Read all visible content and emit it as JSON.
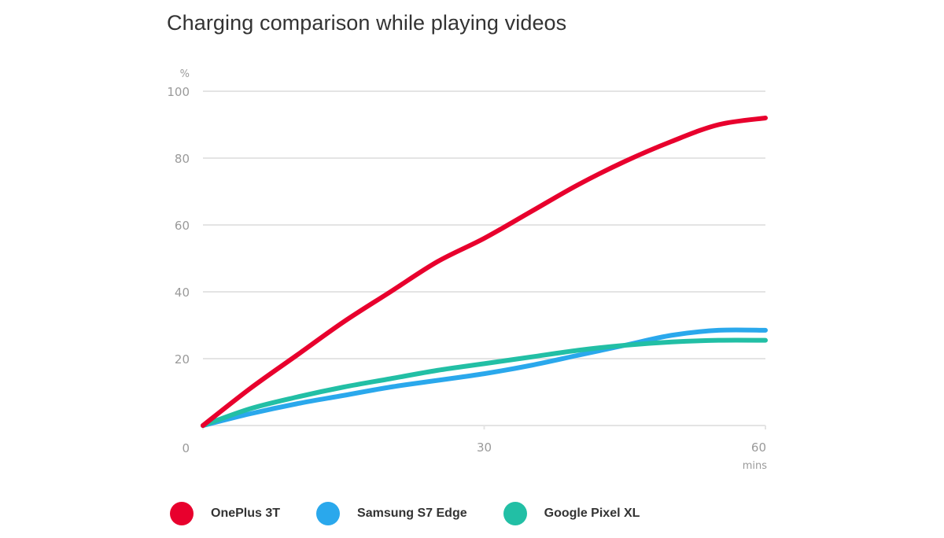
{
  "title": "Charging comparison while playing videos",
  "axes": {
    "y_unit": "%",
    "y_ticks": [
      "100",
      "80",
      "60",
      "40",
      "20",
      "0"
    ],
    "x_ticks": [
      "30",
      "60"
    ],
    "x_unit": "mins"
  },
  "legend": [
    {
      "label": "OnePlus 3T",
      "color": "#e8002d"
    },
    {
      "label": "Samsung S7 Edge",
      "color": "#2aa8ec"
    },
    {
      "label": "Google Pixel XL",
      "color": "#22bfa5"
    }
  ],
  "chart_data": {
    "type": "line",
    "title": "Charging comparison while playing videos",
    "xlabel": "mins",
    "ylabel": "%",
    "xlim": [
      0,
      60
    ],
    "ylim": [
      0,
      100
    ],
    "x_ticks": [
      0,
      30,
      60
    ],
    "y_ticks": [
      0,
      20,
      40,
      60,
      80,
      100
    ],
    "grid": "horizontal",
    "legend_position": "bottom",
    "x": [
      0,
      5,
      10,
      15,
      20,
      25,
      30,
      35,
      40,
      45,
      50,
      55,
      60
    ],
    "series": [
      {
        "name": "OnePlus 3T",
        "color": "#e8002d",
        "values": [
          0,
          11,
          21,
          31,
          40,
          49,
          56,
          64,
          72,
          79,
          85,
          90,
          92
        ]
      },
      {
        "name": "Samsung S7 Edge",
        "color": "#2aa8ec",
        "values": [
          0,
          3.5,
          6.5,
          9,
          11.5,
          13.5,
          15.5,
          18,
          21,
          24,
          27,
          28.5,
          28.5
        ]
      },
      {
        "name": "Google Pixel XL",
        "color": "#22bfa5",
        "values": [
          0,
          5,
          8.5,
          11.5,
          14,
          16.5,
          18.5,
          20.5,
          22.5,
          24,
          25,
          25.5,
          25.5
        ]
      }
    ]
  }
}
